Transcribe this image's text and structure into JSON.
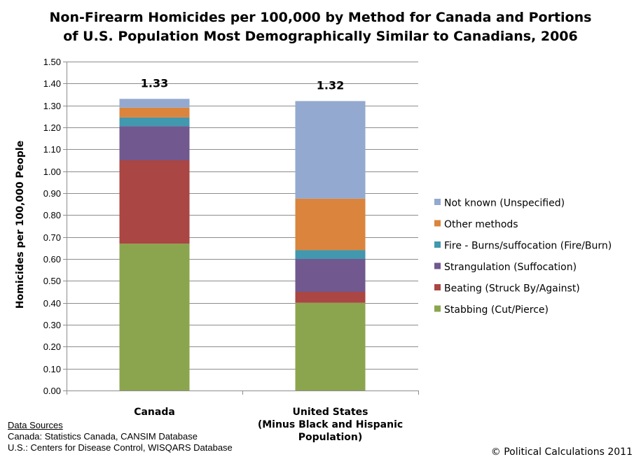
{
  "title_lines": [
    "Non-Firearm Homicides per 100,000 by Method for Canada and Portions",
    "of U.S. Population Most Demographically Similar to Canadians, 2006"
  ],
  "chart_data": {
    "type": "bar",
    "stacked": true,
    "title": "Non-Firearm Homicides per 100,000 by Method for Canada and Portions of U.S. Population Most Demographically Similar to Canadians, 2006",
    "ylabel": "Homicides per 100,000 People",
    "xlabel": "",
    "ylim": [
      0,
      1.5
    ],
    "ytick_step": 0.1,
    "yticks": [
      "0.00",
      "0.10",
      "0.20",
      "0.30",
      "0.40",
      "0.50",
      "0.60",
      "0.70",
      "0.80",
      "0.90",
      "1.00",
      "1.10",
      "1.20",
      "1.30",
      "1.40",
      "1.50"
    ],
    "grid": true,
    "legend_position": "right",
    "categories": [
      [
        "Canada"
      ],
      [
        "United States",
        "(Minus Black and Hispanic",
        "Population)"
      ]
    ],
    "totals": [
      "1.33",
      "1.32"
    ],
    "series": [
      {
        "name": "Stabbing (Cut/Pierce)",
        "color": "#8BA54E",
        "values": [
          0.67,
          0.4
        ]
      },
      {
        "name": "Beating (Struck By/Against)",
        "color": "#AA4643",
        "values": [
          0.38,
          0.05
        ]
      },
      {
        "name": "Strangulation (Suffocation)",
        "color": "#71588F",
        "values": [
          0.155,
          0.15
        ]
      },
      {
        "name": "Fire - Burns/suffocation (Fire/Burn)",
        "color": "#4198AF",
        "values": [
          0.04,
          0.04
        ]
      },
      {
        "name": "Other methods",
        "color": "#DB843D",
        "values": [
          0.045,
          0.235
        ]
      },
      {
        "name": "Not known (Unspecified)",
        "color": "#93A9CF",
        "values": [
          0.04,
          0.445
        ]
      }
    ]
  },
  "sources": {
    "heading": "Data Sources",
    "lines": [
      "Canada: Statistics Canada, CANSIM Database",
      "U.S.: Centers for Disease Control, WISQARS Database"
    ]
  },
  "copyright": "© Political Calculations 2011"
}
